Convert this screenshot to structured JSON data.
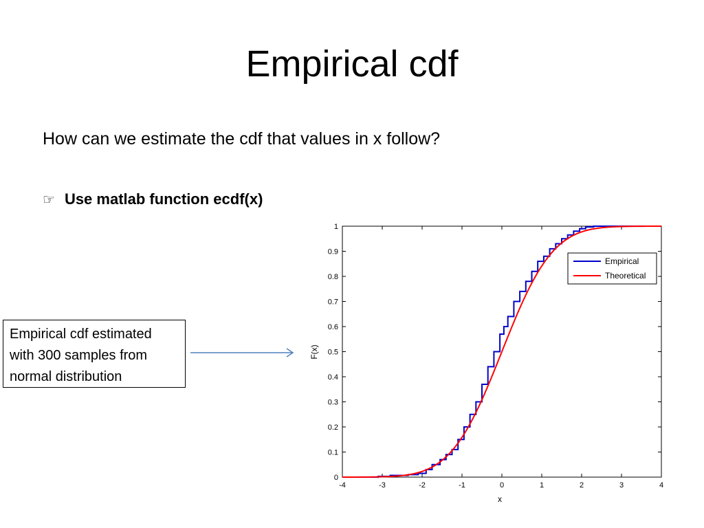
{
  "slide": {
    "title": "Empirical cdf",
    "question": "How can we estimate the cdf that values in x follow?",
    "bullet_icon": "pointing-hand-icon",
    "bullet_glyph": "☞",
    "bullet_text": "Use matlab function ecdf(x)",
    "callout_line1": "Empirical cdf estimated",
    "callout_line2": "with 300 samples from",
    "callout_line3": "normal distribution",
    "arrow_color": "#4f81bd"
  },
  "chart_data": {
    "type": "line",
    "title": "",
    "xlabel": "x",
    "ylabel": "F(x)",
    "xlim": [
      -4,
      4
    ],
    "ylim": [
      0,
      1
    ],
    "xticks": [
      -4,
      -3,
      -2,
      -1,
      0,
      1,
      2,
      3,
      4
    ],
    "yticks": [
      0,
      0.1,
      0.2,
      0.3,
      0.4,
      0.5,
      0.6,
      0.7,
      0.8,
      0.9,
      1
    ],
    "ytick_labels": [
      "0",
      "0.1",
      "0.2",
      "0.3",
      "0.4",
      "0.5",
      "0.6",
      "0.7",
      "0.8",
      "0.9",
      "1"
    ],
    "grid": false,
    "legend_position": "top-right",
    "series": [
      {
        "name": "Empirical",
        "color": "#0000cc",
        "style": "stairs",
        "x": [
          -4,
          -3.1,
          -2.8,
          -2.35,
          -2.1,
          -1.9,
          -1.75,
          -1.55,
          -1.4,
          -1.25,
          -1.1,
          -0.95,
          -0.8,
          -0.65,
          -0.5,
          -0.35,
          -0.2,
          -0.05,
          0.05,
          0.15,
          0.3,
          0.45,
          0.6,
          0.75,
          0.9,
          1.05,
          1.2,
          1.35,
          1.5,
          1.65,
          1.8,
          1.95,
          2.1,
          2.3,
          4
        ],
        "y": [
          0,
          0.003,
          0.007,
          0.01,
          0.015,
          0.03,
          0.05,
          0.07,
          0.09,
          0.11,
          0.15,
          0.2,
          0.25,
          0.3,
          0.37,
          0.44,
          0.5,
          0.57,
          0.6,
          0.64,
          0.7,
          0.74,
          0.78,
          0.82,
          0.86,
          0.88,
          0.91,
          0.93,
          0.95,
          0.965,
          0.98,
          0.99,
          0.997,
          1,
          1
        ]
      },
      {
        "name": "Theoretical",
        "color": "#ff0000",
        "style": "normal-cdf",
        "mu": 0,
        "sigma": 1
      }
    ]
  }
}
